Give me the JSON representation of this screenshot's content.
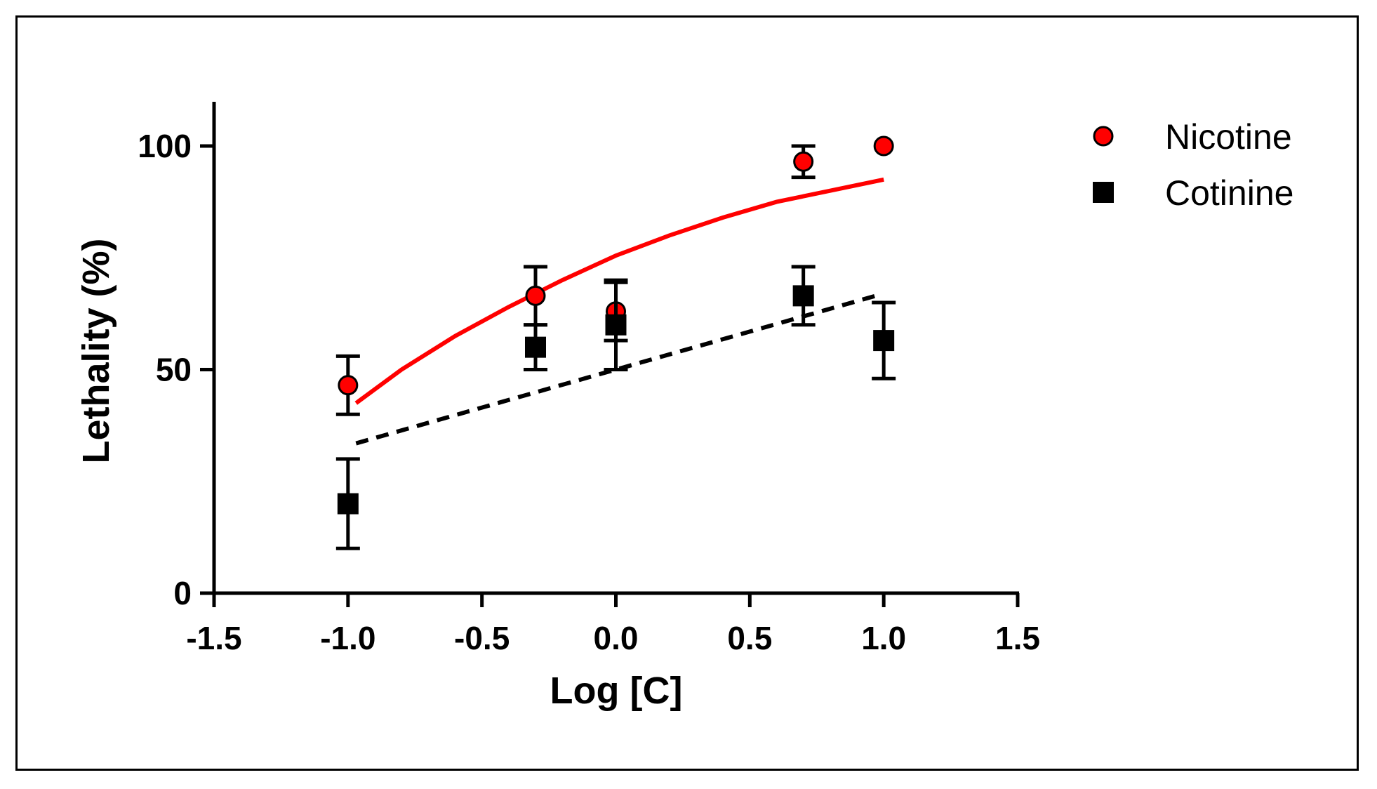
{
  "chart_data": {
    "type": "scatter",
    "title": "",
    "xlabel": "Log [C]",
    "ylabel": "Lethality (%)",
    "xlim": [
      -1.5,
      1.5
    ],
    "ylim": [
      0,
      110
    ],
    "xticks": [
      -1.5,
      -1.0,
      -0.5,
      0.0,
      0.5,
      1.0,
      1.5
    ],
    "xtick_labels": [
      "-1.5",
      "-1.0",
      "-0.5",
      "0.0",
      "0.5",
      "1.0",
      "1.5"
    ],
    "yticks": [
      0,
      50,
      100
    ],
    "ytick_labels": [
      "0",
      "50",
      "100"
    ],
    "grid": false,
    "legend_position": "top-right",
    "series": [
      {
        "name": "Nicotine",
        "marker": "circle",
        "color": "#ff0000",
        "x": [
          -1.0,
          -0.3,
          0.0,
          0.7,
          1.0
        ],
        "y": [
          46.5,
          66.5,
          63.0,
          96.5,
          100.0
        ],
        "err": [
          6.5,
          6.5,
          6.5,
          3.5,
          0
        ],
        "fit": {
          "style": "solid",
          "color": "#ff0000",
          "x": [
            -0.97,
            -0.8,
            -0.6,
            -0.4,
            -0.2,
            0.0,
            0.2,
            0.4,
            0.6,
            0.8,
            1.0
          ],
          "y": [
            42.5,
            50.0,
            57.5,
            64.0,
            70.0,
            75.5,
            80.0,
            84.0,
            87.5,
            90.0,
            92.5
          ]
        }
      },
      {
        "name": "Cotinine",
        "marker": "square",
        "color": "#000000",
        "x": [
          -1.0,
          -0.3,
          0.0,
          0.7,
          1.0
        ],
        "y": [
          20.0,
          55.0,
          60.0,
          66.5,
          56.5
        ],
        "err": [
          10.0,
          5.0,
          10.0,
          6.5,
          8.5
        ],
        "fit": {
          "style": "dashed",
          "color": "#000000",
          "x": [
            -0.97,
            -0.5,
            0.0,
            0.5,
            0.97
          ],
          "y": [
            33.5,
            41.5,
            50.0,
            58.5,
            66.5
          ]
        }
      }
    ]
  }
}
